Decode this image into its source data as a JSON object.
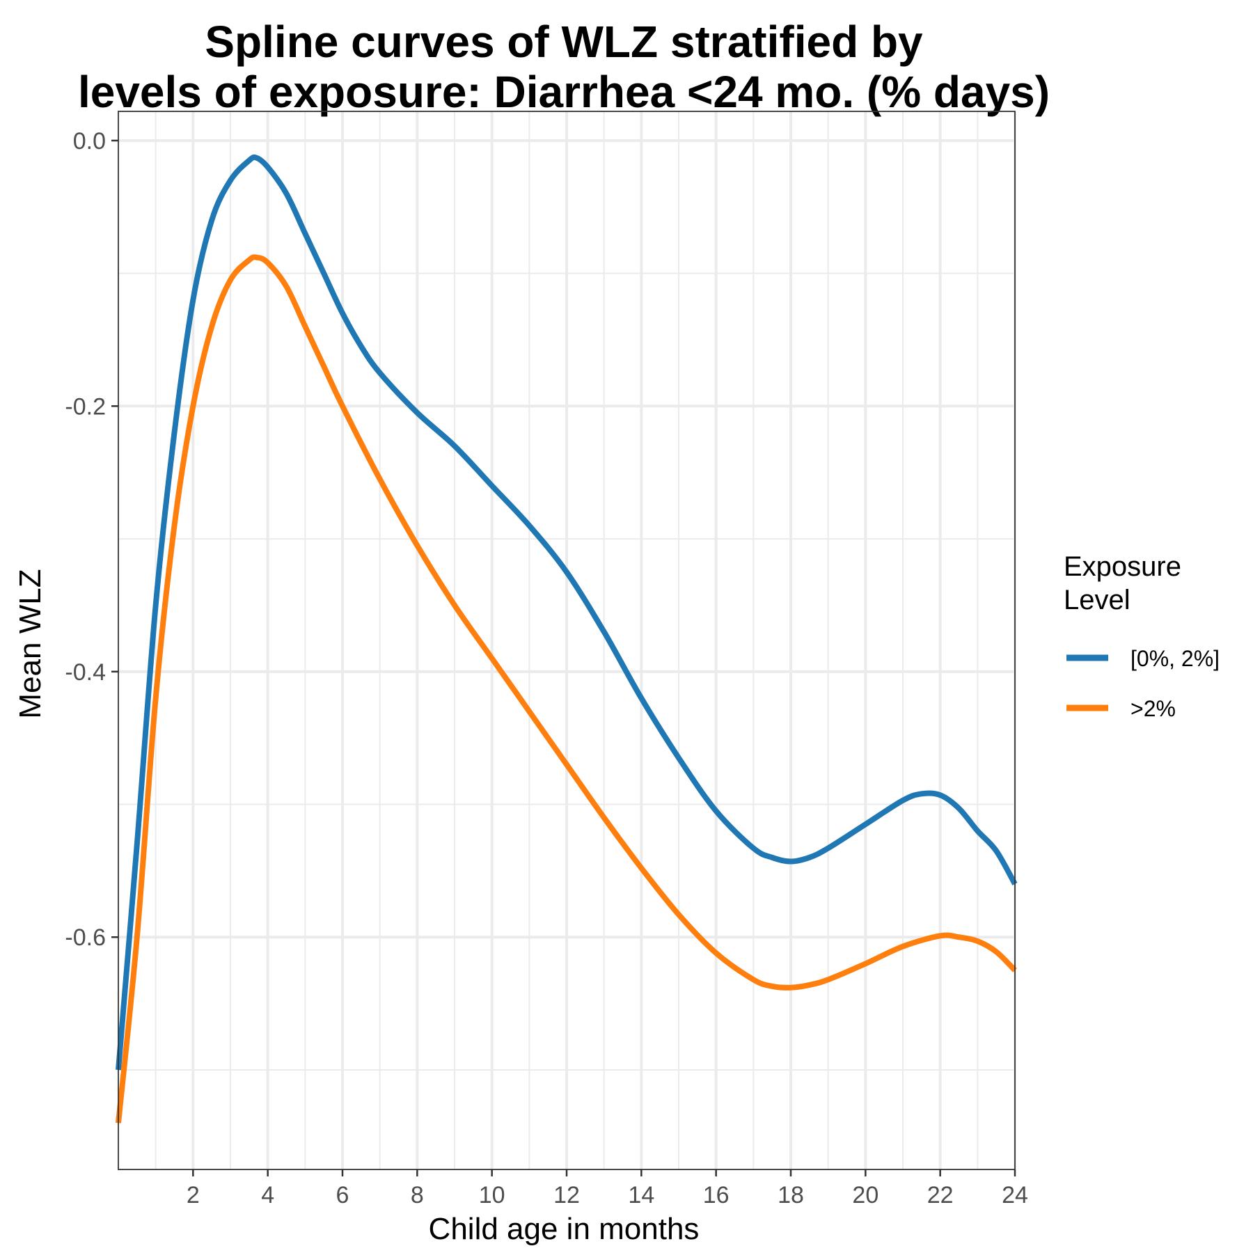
{
  "chart_data": {
    "type": "line",
    "title_lines": [
      "Spline curves of WLZ stratified by",
      "levels of exposure: Diarrhea <24 mo.  (% days)"
    ],
    "xlabel": "Child age in months",
    "ylabel": "Mean WLZ",
    "xlim": [
      0,
      24
    ],
    "ylim": [
      -0.775,
      0.022
    ],
    "x_ticks": [
      2,
      4,
      6,
      8,
      10,
      12,
      14,
      16,
      18,
      20,
      22,
      24
    ],
    "x_minor_ticks": [
      1,
      3,
      5,
      7,
      9,
      11,
      13,
      15,
      17,
      19,
      21,
      23
    ],
    "y_ticks": [
      0.0,
      -0.2,
      -0.4,
      -0.6
    ],
    "y_tick_labels": [
      "0.0",
      "-0.2",
      "-0.4",
      "-0.6"
    ],
    "y_minor_ticks": [
      -0.1,
      -0.3,
      -0.5,
      -0.7
    ],
    "grid": true,
    "legend": {
      "title_lines": [
        "Exposure",
        "Level"
      ],
      "placement": "right"
    },
    "series": [
      {
        "name": "[0%, 2%]",
        "color": "#1f77b4",
        "x": [
          0.0,
          0.5,
          1.0,
          1.5,
          2.0,
          2.5,
          3.0,
          3.5,
          3.7,
          4.0,
          4.5,
          5.0,
          5.5,
          6.0,
          6.5,
          7.0,
          8.0,
          9.0,
          10.0,
          11.0,
          12.0,
          13.0,
          14.0,
          15.0,
          16.0,
          17.0,
          17.5,
          18.0,
          18.5,
          19.0,
          20.0,
          21.0,
          21.5,
          22.0,
          22.5,
          23.0,
          23.5,
          24.0
        ],
        "y": [
          -0.7,
          -0.53,
          -0.35,
          -0.22,
          -0.12,
          -0.06,
          -0.03,
          -0.015,
          -0.013,
          -0.02,
          -0.04,
          -0.07,
          -0.1,
          -0.13,
          -0.155,
          -0.175,
          -0.205,
          -0.23,
          -0.26,
          -0.29,
          -0.325,
          -0.37,
          -0.42,
          -0.465,
          -0.505,
          -0.533,
          -0.54,
          -0.543,
          -0.54,
          -0.533,
          -0.515,
          -0.497,
          -0.492,
          -0.493,
          -0.503,
          -0.52,
          -0.535,
          -0.56
        ]
      },
      {
        "name": ">2%",
        "color": "#ff7f0e",
        "x": [
          0.0,
          0.5,
          1.0,
          1.5,
          2.0,
          2.5,
          3.0,
          3.5,
          3.7,
          4.0,
          4.5,
          5.0,
          5.5,
          6.0,
          7.0,
          8.0,
          9.0,
          10.0,
          11.0,
          12.0,
          13.0,
          14.0,
          15.0,
          16.0,
          17.0,
          17.5,
          18.0,
          18.5,
          19.0,
          20.0,
          21.0,
          22.0,
          22.5,
          23.0,
          23.5,
          24.0
        ],
        "y": [
          -0.74,
          -0.6,
          -0.42,
          -0.29,
          -0.2,
          -0.14,
          -0.105,
          -0.09,
          -0.088,
          -0.092,
          -0.11,
          -0.14,
          -0.17,
          -0.2,
          -0.255,
          -0.305,
          -0.35,
          -0.39,
          -0.43,
          -0.47,
          -0.51,
          -0.548,
          -0.583,
          -0.612,
          -0.632,
          -0.637,
          -0.638,
          -0.636,
          -0.632,
          -0.62,
          -0.607,
          -0.599,
          -0.6,
          -0.603,
          -0.611,
          -0.625
        ]
      }
    ]
  }
}
